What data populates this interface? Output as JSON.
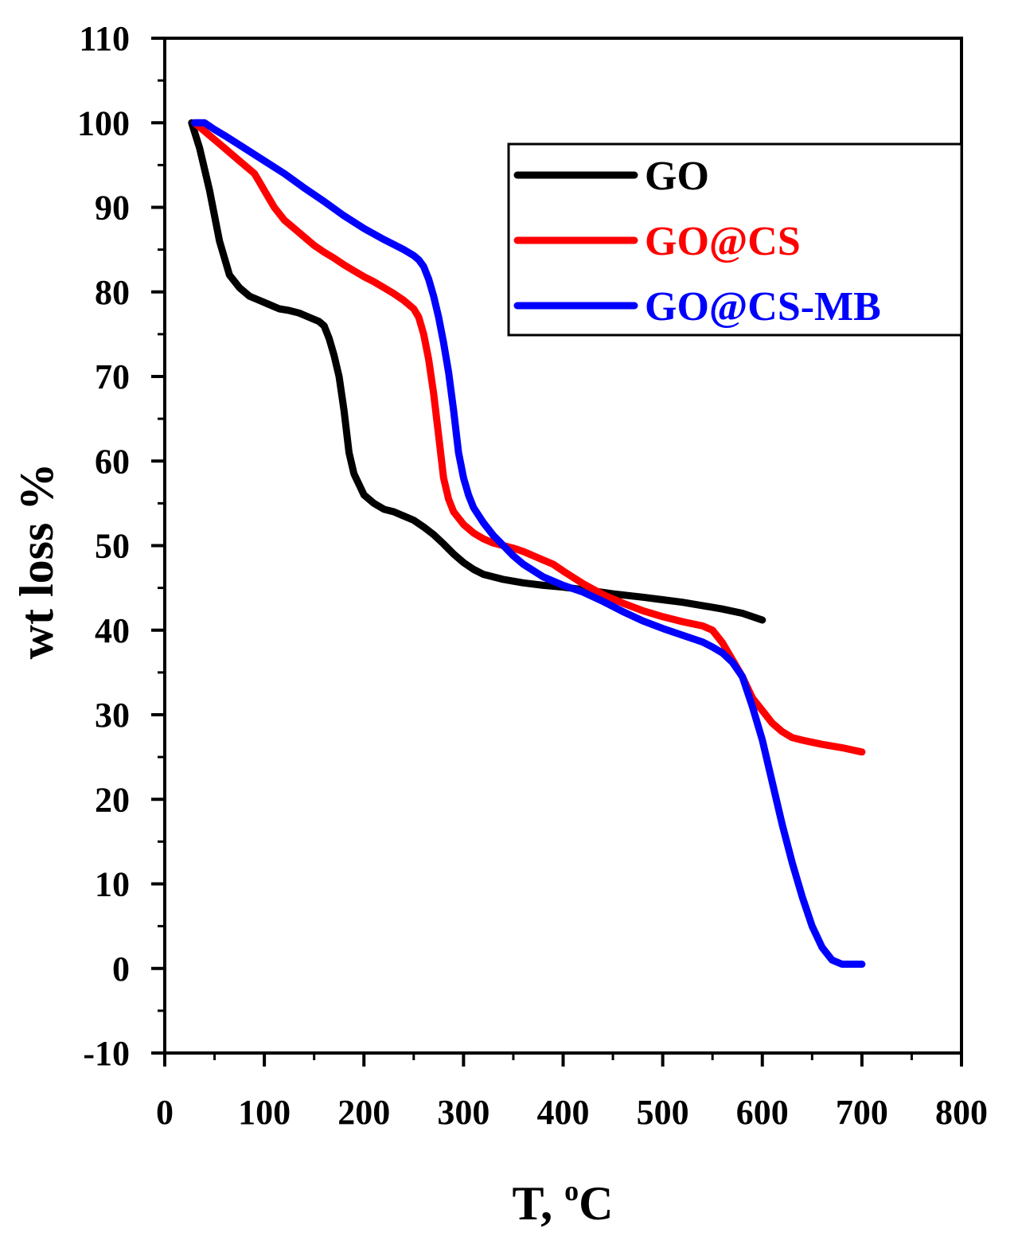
{
  "chart_data": {
    "type": "line",
    "title": "",
    "xlabel": "T, °C",
    "xlabel_main": "T, ",
    "xlabel_sup": "o",
    "xlabel_unit": "C",
    "ylabel": "wt loss %",
    "xlim": [
      0,
      800
    ],
    "ylim": [
      -10,
      110
    ],
    "xticks": [
      0,
      100,
      200,
      300,
      400,
      500,
      600,
      700,
      800
    ],
    "yticks": [
      -10,
      0,
      10,
      20,
      30,
      40,
      50,
      60,
      70,
      80,
      90,
      100,
      110
    ],
    "grid": false,
    "legend_position": "top-right",
    "colors": {
      "axis": "#000000",
      "background": "#ffffff"
    },
    "series": [
      {
        "name": "GO",
        "color": "#000000",
        "x": [
          27,
          35,
          45,
          55,
          65,
          75,
          85,
          95,
          105,
          115,
          125,
          135,
          145,
          155,
          160,
          165,
          170,
          175,
          180,
          185,
          190,
          200,
          210,
          220,
          230,
          240,
          250,
          260,
          270,
          280,
          290,
          300,
          310,
          320,
          340,
          360,
          380,
          400,
          420,
          450,
          480,
          500,
          520,
          540,
          560,
          580,
          600
        ],
        "y": [
          100,
          97,
          92,
          86,
          82,
          80.5,
          79.5,
          79,
          78.5,
          78,
          77.8,
          77.5,
          77,
          76.5,
          76,
          74.5,
          72.5,
          70,
          66,
          61,
          58.5,
          56,
          55,
          54.3,
          54,
          53.5,
          53,
          52.2,
          51.3,
          50.2,
          49,
          48,
          47.2,
          46.6,
          46,
          45.6,
          45.3,
          45.1,
          44.8,
          44.3,
          43.9,
          43.6,
          43.3,
          42.9,
          42.5,
          42,
          41.2
        ]
      },
      {
        "name": "GO@CS",
        "color": "#ff0000",
        "x": [
          30,
          40,
          50,
          60,
          70,
          80,
          90,
          95,
          100,
          110,
          120,
          130,
          140,
          150,
          160,
          170,
          180,
          190,
          200,
          210,
          220,
          230,
          240,
          250,
          255,
          260,
          265,
          270,
          275,
          280,
          285,
          290,
          300,
          310,
          320,
          330,
          340,
          350,
          360,
          370,
          380,
          390,
          400,
          420,
          440,
          460,
          480,
          500,
          520,
          540,
          550,
          560,
          570,
          580,
          590,
          600,
          610,
          620,
          630,
          640,
          660,
          680,
          700
        ],
        "y": [
          100,
          99,
          98,
          97,
          96,
          95,
          94,
          93,
          92,
          90,
          88.5,
          87.5,
          86.5,
          85.5,
          84.7,
          84,
          83.2,
          82.5,
          81.8,
          81.2,
          80.5,
          79.8,
          79,
          78,
          77,
          75,
          72,
          68,
          63,
          58,
          55.5,
          54,
          52.5,
          51.5,
          50.8,
          50.3,
          50,
          49.7,
          49.3,
          48.8,
          48.3,
          47.8,
          47,
          45.5,
          44.2,
          43.2,
          42.3,
          41.6,
          41,
          40.5,
          40,
          38.5,
          36.5,
          34.5,
          32,
          30.5,
          29,
          28,
          27.3,
          27,
          26.5,
          26.1,
          25.6
        ]
      },
      {
        "name": "GO@CS-MB",
        "color": "#0000ff",
        "x": [
          30,
          40,
          50,
          60,
          80,
          100,
          120,
          140,
          160,
          180,
          200,
          220,
          240,
          250,
          255,
          260,
          265,
          270,
          275,
          280,
          285,
          290,
          295,
          300,
          305,
          310,
          320,
          330,
          340,
          350,
          360,
          380,
          400,
          420,
          440,
          460,
          480,
          500,
          520,
          540,
          550,
          560,
          570,
          580,
          590,
          600,
          610,
          620,
          630,
          640,
          650,
          660,
          670,
          680,
          690,
          700
        ],
        "y": [
          100,
          100,
          99.2,
          98.5,
          97,
          95.5,
          94,
          92.3,
          90.7,
          89,
          87.5,
          86.2,
          85,
          84.3,
          83.8,
          83,
          81.5,
          79.5,
          77,
          74,
          70.5,
          66,
          61,
          58,
          56,
          54.5,
          52.7,
          51.2,
          50,
          48.8,
          47.8,
          46.3,
          45.3,
          44.5,
          43.4,
          42.2,
          41.1,
          40.2,
          39.4,
          38.6,
          38,
          37.3,
          36.2,
          34.5,
          31,
          27,
          22,
          17,
          12.5,
          8.5,
          5,
          2.5,
          1,
          0.5,
          0.5,
          0.5
        ]
      }
    ]
  }
}
